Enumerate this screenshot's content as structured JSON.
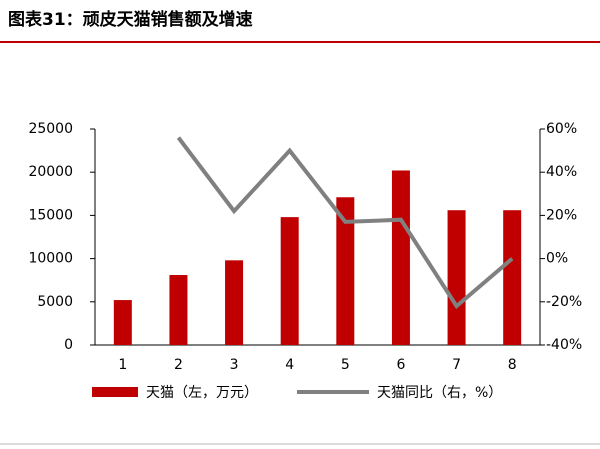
{
  "title": "图表31：顽皮天猫销售额及增速",
  "chart_data": {
    "type": "bar-line",
    "categories": [
      "1",
      "2",
      "3",
      "4",
      "5",
      "6",
      "7",
      "8"
    ],
    "series": [
      {
        "name": "天猫（左，万元）",
        "type": "bar",
        "color": "#c00000",
        "values": [
          5200,
          8100,
          9800,
          14800,
          17100,
          20200,
          15600,
          15600
        ]
      },
      {
        "name": "天猫同比（右，%）",
        "type": "line",
        "axis": "y2",
        "color": "#808080",
        "values": [
          null,
          56,
          22,
          50,
          17,
          18,
          -22,
          0
        ]
      }
    ],
    "ylim": [
      0,
      25000
    ],
    "yticks": [
      0,
      5000,
      10000,
      15000,
      20000,
      25000
    ],
    "y2lim": [
      -40,
      60
    ],
    "y2ticks": [
      {
        "value": -40,
        "label": "-40%"
      },
      {
        "value": -20,
        "label": "-20%"
      },
      {
        "value": 0,
        "label": "0%"
      },
      {
        "value": 20,
        "label": "20%"
      },
      {
        "value": 40,
        "label": "40%"
      },
      {
        "value": 60,
        "label": "60%"
      }
    ],
    "grid": false,
    "legend": "bottom"
  }
}
